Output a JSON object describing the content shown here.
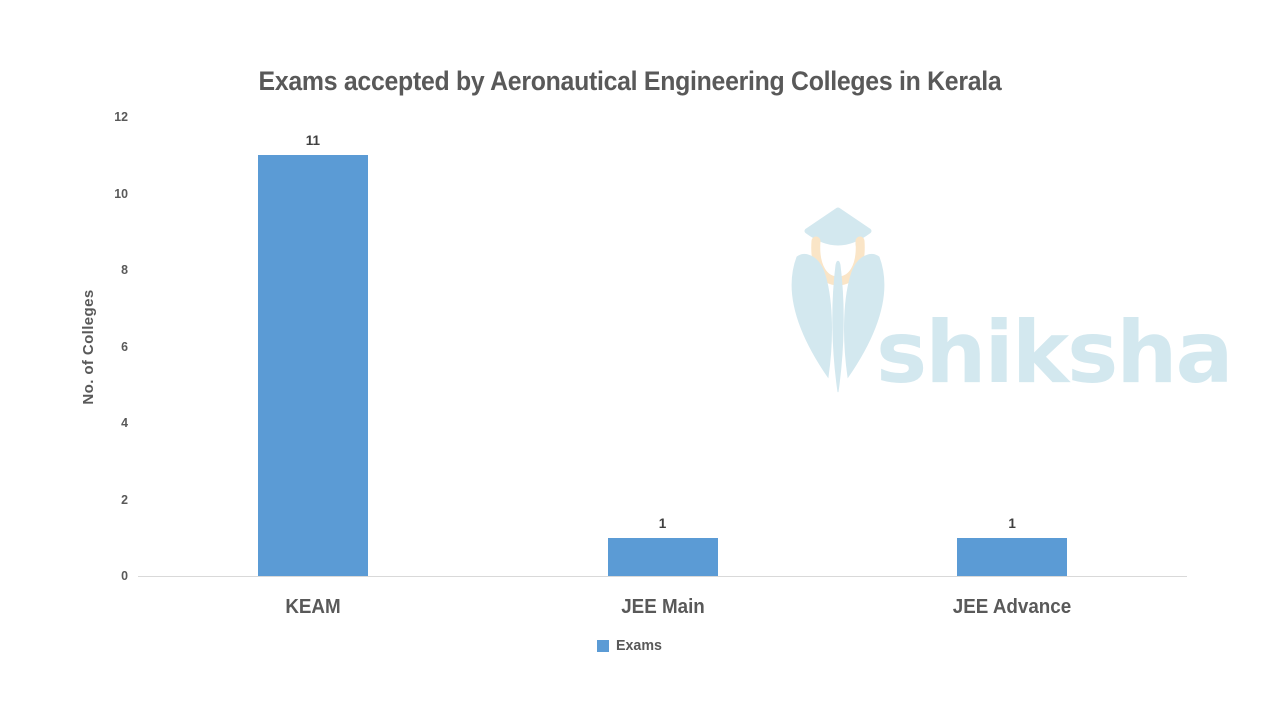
{
  "chart_data": {
    "type": "bar",
    "title": "Exams accepted by Aeronautical Engineering Colleges in Kerala",
    "categories": [
      "KEAM",
      "JEE Main",
      "JEE Advance"
    ],
    "series": [
      {
        "name": "Exams",
        "values": [
          11,
          1,
          1
        ]
      }
    ],
    "data_labels": [
      "11",
      "1",
      "1"
    ],
    "xlabel": "",
    "ylabel": "No. of Colleges",
    "ylim": [
      0,
      12
    ],
    "yticks": [
      0,
      2,
      4,
      6,
      8,
      10,
      12
    ],
    "grid": false,
    "legend_position": "bottom",
    "colors": {
      "bar": "#5B9BD5",
      "text": "#595959",
      "value_label": "#404040",
      "axis_line": "#D9D9D9"
    }
  },
  "watermark": {
    "text": "shiksha",
    "color": "#D3E8EF",
    "accent_color": "#FAE5C7"
  }
}
